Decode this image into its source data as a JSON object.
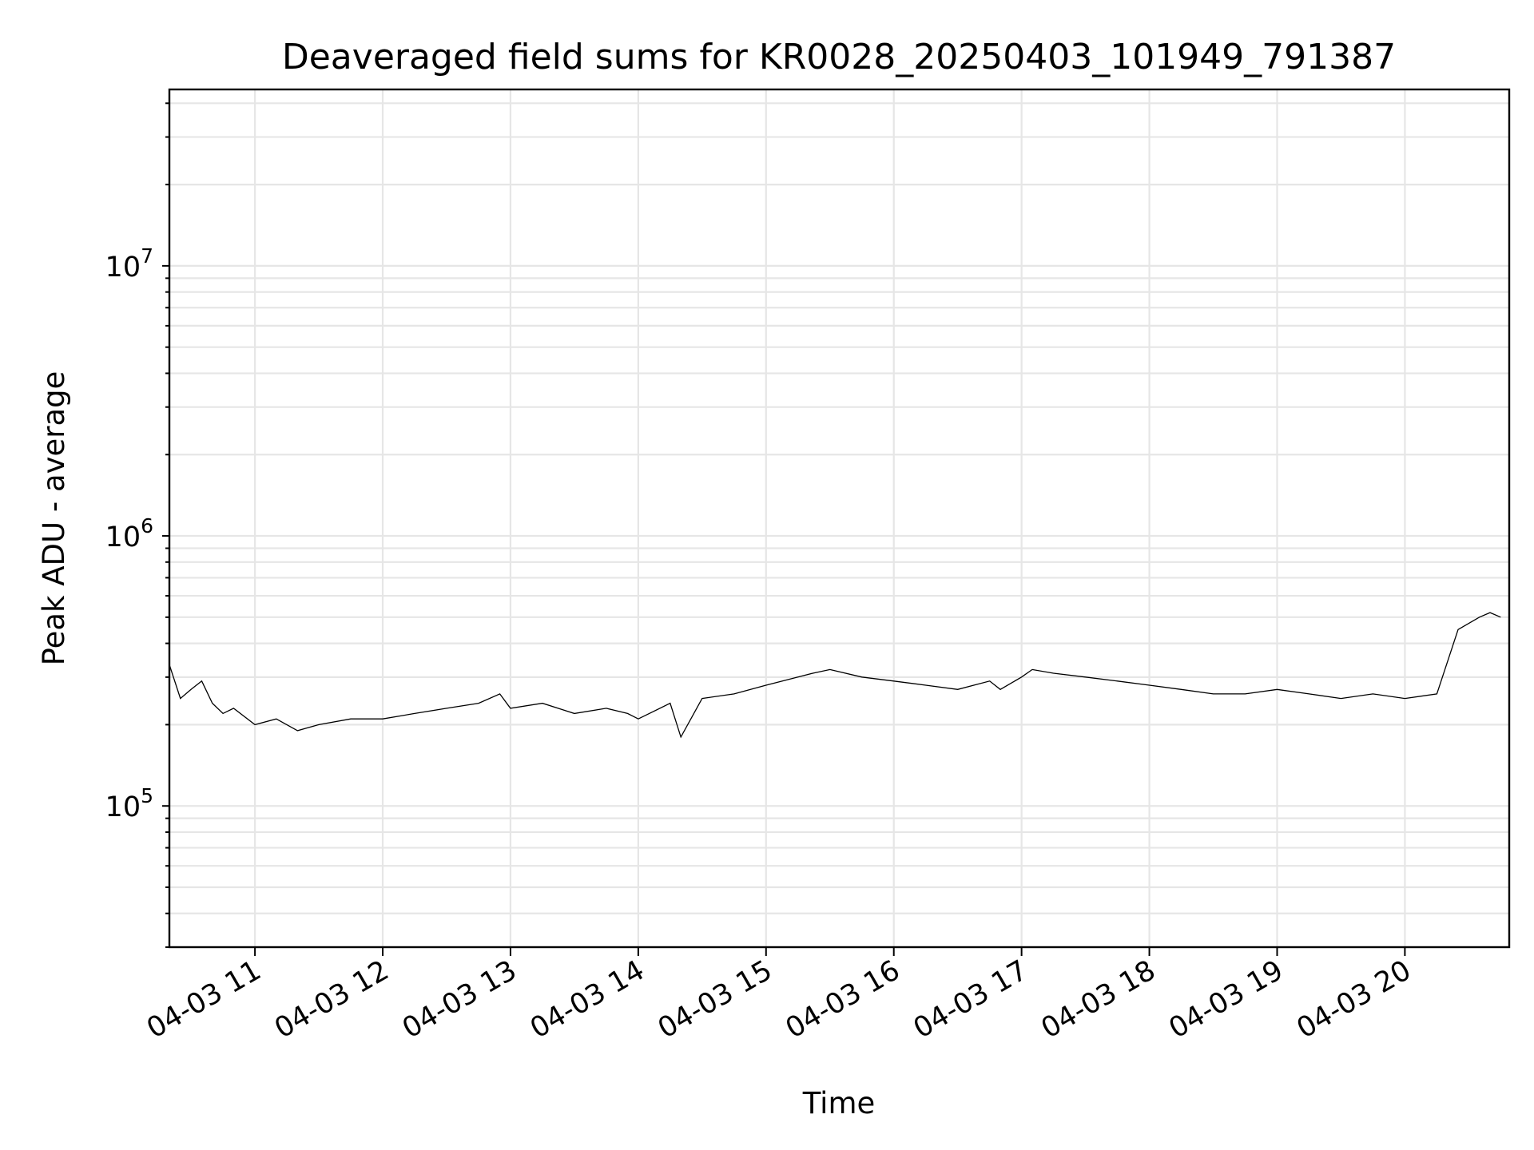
{
  "chart_data": {
    "type": "line",
    "title": "Deaveraged field sums for KR0028_20250403_101949_791387",
    "xlabel": "Time",
    "ylabel": "Peak ADU - average",
    "yscale": "log",
    "ylim": [
      30000,
      45000000
    ],
    "xlim": [
      "2025-04-03 10:19:49",
      "2025-04-03 20:49:00"
    ],
    "grid": true,
    "legend": "none",
    "line_color": "#000000",
    "x_ticks": [
      {
        "value": "2025-04-03 11:00",
        "label": "04-03 11"
      },
      {
        "value": "2025-04-03 12:00",
        "label": "04-03 12"
      },
      {
        "value": "2025-04-03 13:00",
        "label": "04-03 13"
      },
      {
        "value": "2025-04-03 14:00",
        "label": "04-03 14"
      },
      {
        "value": "2025-04-03 15:00",
        "label": "04-03 15"
      },
      {
        "value": "2025-04-03 16:00",
        "label": "04-03 16"
      },
      {
        "value": "2025-04-03 17:00",
        "label": "04-03 17"
      },
      {
        "value": "2025-04-03 18:00",
        "label": "04-03 18"
      },
      {
        "value": "2025-04-03 19:00",
        "label": "04-03 19"
      },
      {
        "value": "2025-04-03 20:00",
        "label": "04-03 20"
      }
    ],
    "y_ticks": [
      {
        "value": 100000,
        "base": "10",
        "exp": "5"
      },
      {
        "value": 1000000,
        "base": "10",
        "exp": "6"
      },
      {
        "value": 10000000,
        "base": "10",
        "exp": "7"
      }
    ],
    "x": [
      "2025-04-03 10:20",
      "2025-04-03 10:25",
      "2025-04-03 10:30",
      "2025-04-03 10:35",
      "2025-04-03 10:40",
      "2025-04-03 10:45",
      "2025-04-03 10:50",
      "2025-04-03 11:00",
      "2025-04-03 11:10",
      "2025-04-03 11:20",
      "2025-04-03 11:30",
      "2025-04-03 11:45",
      "2025-04-03 12:00",
      "2025-04-03 12:15",
      "2025-04-03 12:30",
      "2025-04-03 12:45",
      "2025-04-03 12:55",
      "2025-04-03 13:00",
      "2025-04-03 13:15",
      "2025-04-03 13:30",
      "2025-04-03 13:45",
      "2025-04-03 13:55",
      "2025-04-03 14:00",
      "2025-04-03 14:15",
      "2025-04-03 14:20",
      "2025-04-03 14:30",
      "2025-04-03 14:45",
      "2025-04-03 15:00",
      "2025-04-03 15:15",
      "2025-04-03 15:22",
      "2025-04-03 15:30",
      "2025-04-03 15:45",
      "2025-04-03 16:00",
      "2025-04-03 16:15",
      "2025-04-03 16:30",
      "2025-04-03 16:45",
      "2025-04-03 16:50",
      "2025-04-03 17:00",
      "2025-04-03 17:05",
      "2025-04-03 17:15",
      "2025-04-03 17:30",
      "2025-04-03 17:45",
      "2025-04-03 18:00",
      "2025-04-03 18:15",
      "2025-04-03 18:30",
      "2025-04-03 18:45",
      "2025-04-03 19:00",
      "2025-04-03 19:15",
      "2025-04-03 19:30",
      "2025-04-03 19:45",
      "2025-04-03 20:00",
      "2025-04-03 20:15",
      "2025-04-03 20:25",
      "2025-04-03 20:35",
      "2025-04-03 20:40",
      "2025-04-03 20:45"
    ],
    "y": [
      330000,
      250000,
      270000,
      290000,
      240000,
      220000,
      230000,
      200000,
      210000,
      190000,
      200000,
      210000,
      210000,
      220000,
      230000,
      240000,
      260000,
      230000,
      240000,
      220000,
      230000,
      220000,
      210000,
      240000,
      180000,
      250000,
      260000,
      280000,
      300000,
      310000,
      320000,
      300000,
      290000,
      280000,
      270000,
      290000,
      270000,
      300000,
      320000,
      310000,
      300000,
      290000,
      280000,
      270000,
      260000,
      260000,
      270000,
      260000,
      250000,
      260000,
      250000,
      260000,
      450000,
      500000,
      520000,
      500000
    ],
    "annotations": []
  }
}
